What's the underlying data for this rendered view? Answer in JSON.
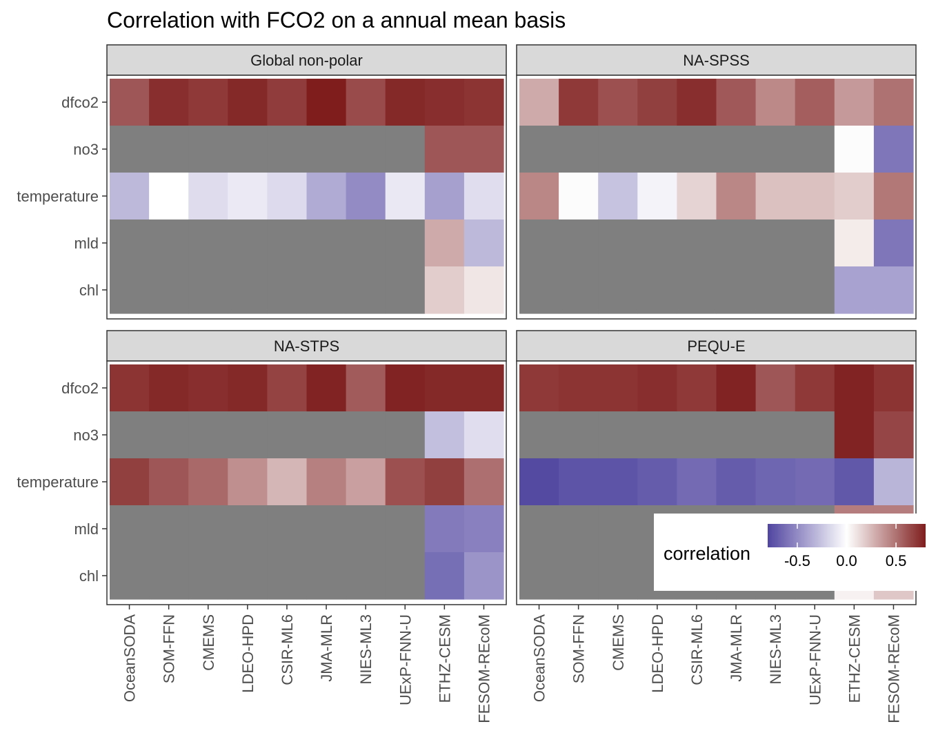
{
  "chart_data": {
    "type": "heatmap",
    "title": "Correlation with FCO2 on a annual mean basis",
    "xlabel": "",
    "ylabel": "",
    "products": [
      "OceanSODA",
      "SOM-FFN",
      "CMEMS",
      "LDEO-HPD",
      "CSIR-ML6",
      "JMA-MLR",
      "NIES-ML3",
      "UExP-FNN-U",
      "ETHZ-CESM",
      "FESOM-REcoM"
    ],
    "variables": [
      "dfco2",
      "no3",
      "temperature",
      "mld",
      "chl"
    ],
    "legend": {
      "title": "correlation",
      "limits": [
        -0.8,
        0.8
      ],
      "breaks": [
        -0.5,
        0.0,
        0.5
      ],
      "break_labels": [
        "-0.5",
        "0.0",
        "0.5"
      ],
      "low_color": "#5045a0",
      "mid_color": "#ffffff",
      "high_color": "#7f1d1d",
      "na_color": "#7f7f7f",
      "position": "bottom-right"
    },
    "panels": [
      {
        "name": "Global non-polar",
        "values": [
          [
            0.6,
            0.74,
            0.7,
            0.76,
            0.69,
            0.8,
            0.64,
            0.76,
            0.74,
            0.72
          ],
          [
            null,
            null,
            null,
            null,
            null,
            null,
            null,
            null,
            0.6,
            0.6
          ],
          [
            -0.3,
            0.0,
            -0.15,
            -0.09,
            -0.16,
            -0.36,
            -0.5,
            -0.1,
            -0.41,
            -0.14
          ],
          [
            null,
            null,
            null,
            null,
            null,
            null,
            null,
            null,
            0.3,
            -0.3
          ],
          [
            null,
            null,
            null,
            null,
            null,
            null,
            null,
            null,
            0.18,
            0.09
          ]
        ]
      },
      {
        "name": "NA-SPSS",
        "values": [
          [
            0.3,
            0.7,
            0.62,
            0.68,
            0.74,
            0.59,
            0.42,
            0.57,
            0.36,
            0.5
          ],
          [
            null,
            null,
            null,
            null,
            null,
            null,
            null,
            null,
            0.01,
            -0.59
          ],
          [
            0.43,
            0.01,
            -0.26,
            -0.05,
            0.16,
            0.43,
            0.22,
            0.22,
            0.18,
            0.48
          ],
          [
            null,
            null,
            null,
            null,
            null,
            null,
            null,
            null,
            0.07,
            -0.59
          ],
          [
            null,
            null,
            null,
            null,
            null,
            null,
            null,
            null,
            -0.4,
            -0.4
          ]
        ]
      },
      {
        "name": "NA-STPS",
        "values": [
          [
            0.72,
            0.76,
            0.74,
            0.76,
            0.67,
            0.78,
            0.58,
            0.78,
            0.76,
            0.76
          ],
          [
            null,
            null,
            null,
            null,
            null,
            null,
            null,
            null,
            -0.28,
            -0.14
          ],
          [
            0.68,
            0.6,
            0.53,
            0.4,
            0.26,
            0.45,
            0.34,
            0.62,
            0.68,
            0.51
          ],
          [
            null,
            null,
            null,
            null,
            null,
            null,
            null,
            null,
            -0.57,
            -0.54
          ],
          [
            null,
            null,
            null,
            null,
            null,
            null,
            null,
            null,
            -0.62,
            -0.46
          ]
        ]
      },
      {
        "name": "PEQU-E",
        "values": [
          [
            0.7,
            0.72,
            0.72,
            0.74,
            0.7,
            0.78,
            0.6,
            0.7,
            0.78,
            0.72
          ],
          [
            null,
            null,
            null,
            null,
            null,
            null,
            null,
            null,
            0.78,
            0.66
          ],
          [
            -0.78,
            -0.74,
            -0.74,
            -0.7,
            -0.64,
            -0.7,
            -0.66,
            -0.64,
            -0.72,
            -0.32
          ],
          [
            null,
            null,
            null,
            null,
            null,
            null,
            null,
            null,
            0.46,
            0.46
          ],
          [
            null,
            null,
            null,
            null,
            null,
            null,
            null,
            null,
            0.05,
            0.2
          ]
        ]
      }
    ]
  }
}
